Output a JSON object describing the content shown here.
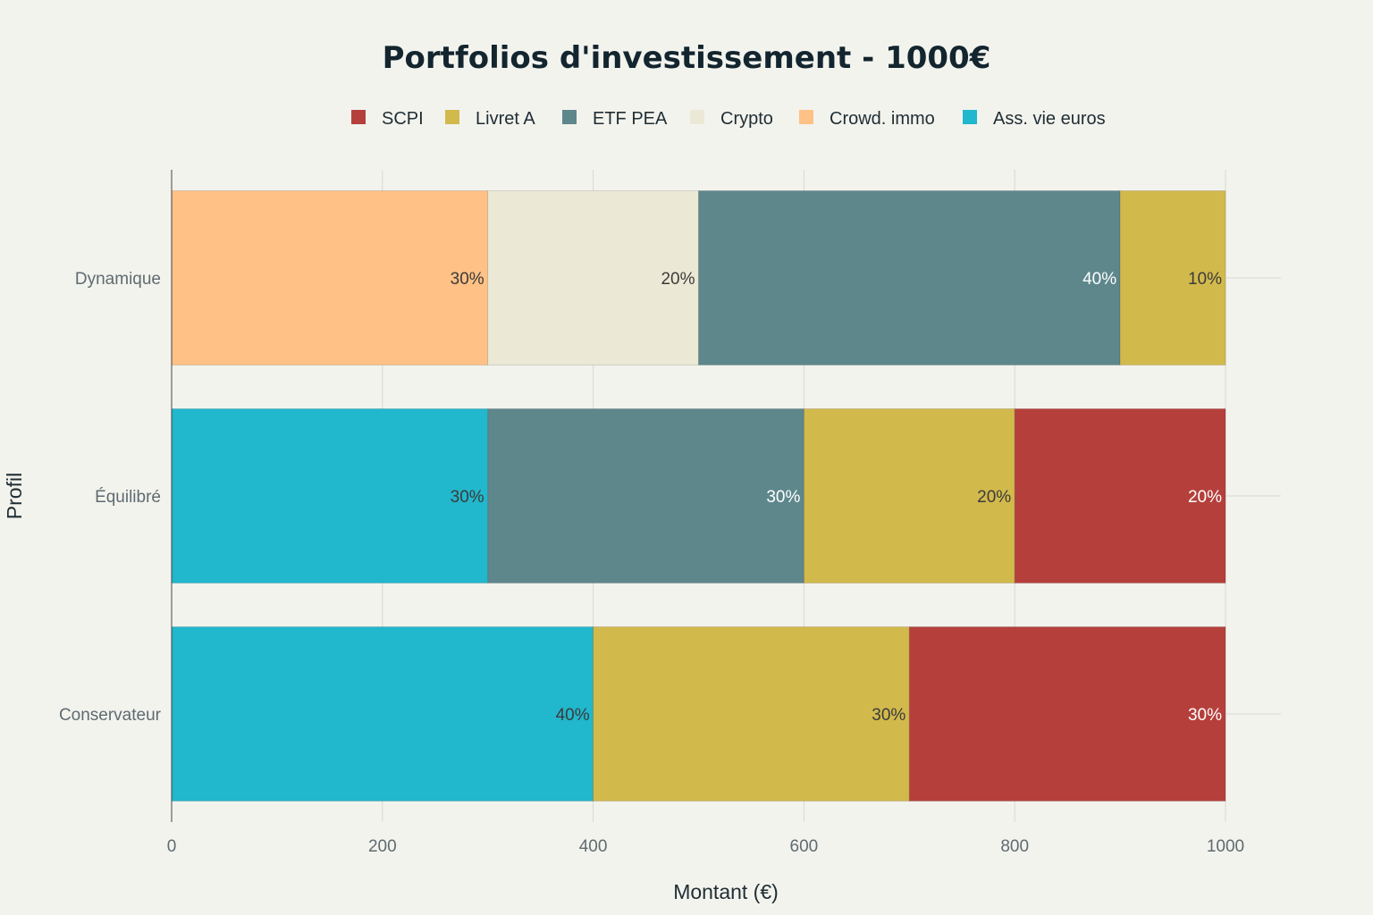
{
  "chart_data": {
    "type": "bar",
    "orientation": "horizontal",
    "stacked": true,
    "title": "Portfolios d'investissement - 1000€",
    "xlabel": "Montant (€)",
    "ylabel": "Profil",
    "xlim": [
      0,
      1000
    ],
    "xticks": [
      0,
      200,
      400,
      600,
      800,
      1000
    ],
    "grid": true,
    "legend_position": "top",
    "categories": [
      "Dynamique",
      "Équilibré",
      "Conservateur"
    ],
    "legend": [
      {
        "name": "SCPI",
        "color": "#b5403b"
      },
      {
        "name": "Livret A",
        "color": "#d2b94c"
      },
      {
        "name": "ETF PEA",
        "color": "#5e878c"
      },
      {
        "name": "Crypto",
        "color": "#ebe9d5"
      },
      {
        "name": "Crowd. immo",
        "color": "#ffc185"
      },
      {
        "name": "Ass. vie euros",
        "color": "#21b7cc"
      }
    ],
    "bars": [
      {
        "category": "Dynamique",
        "segments": [
          {
            "series": "Crowd. immo",
            "value": 300,
            "label": "30%",
            "label_color": "#3b3b3b"
          },
          {
            "series": "Crypto",
            "value": 200,
            "label": "20%",
            "label_color": "#3b3b3b"
          },
          {
            "series": "ETF PEA",
            "value": 400,
            "label": "40%",
            "label_color": "#ffffff"
          },
          {
            "series": "Livret A",
            "value": 100,
            "label": "10%",
            "label_color": "#3b3b3b"
          }
        ]
      },
      {
        "category": "Équilibré",
        "segments": [
          {
            "series": "Ass. vie euros",
            "value": 300,
            "label": "30%",
            "label_color": "#3b3b3b"
          },
          {
            "series": "ETF PEA",
            "value": 300,
            "label": "30%",
            "label_color": "#ffffff"
          },
          {
            "series": "Livret A",
            "value": 200,
            "label": "20%",
            "label_color": "#3b3b3b"
          },
          {
            "series": "SCPI",
            "value": 200,
            "label": "20%",
            "label_color": "#ffffff"
          }
        ]
      },
      {
        "category": "Conservateur",
        "segments": [
          {
            "series": "Ass. vie euros",
            "value": 400,
            "label": "40%",
            "label_color": "#3b3b3b"
          },
          {
            "series": "Livret A",
            "value": 300,
            "label": "30%",
            "label_color": "#3b3b3b"
          },
          {
            "series": "SCPI",
            "value": 300,
            "label": "30%",
            "label_color": "#ffffff"
          }
        ]
      }
    ]
  }
}
